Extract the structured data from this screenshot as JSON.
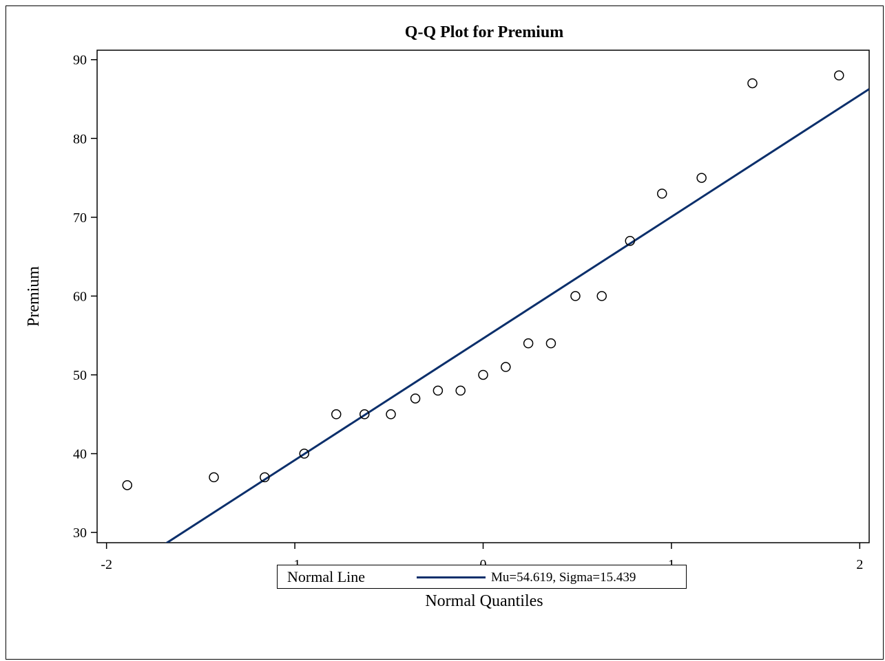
{
  "chart_data": {
    "type": "scatter",
    "title": "Q-Q Plot for Premium",
    "xlabel": "Normal Quantiles",
    "ylabel": "Premium",
    "xlim": [
      -2.05,
      2.05
    ],
    "ylim": [
      28.7,
      91.2
    ],
    "x_ticks": [
      -2,
      -1,
      0,
      1,
      2
    ],
    "y_ticks": [
      30,
      40,
      50,
      60,
      70,
      80,
      90
    ],
    "grid": false,
    "series": [
      {
        "marker": "open-circle",
        "x": [
          -1.89,
          -1.43,
          -1.16,
          -0.95,
          -0.78,
          -0.63,
          -0.49,
          -0.36,
          -0.24,
          -0.12,
          0.0,
          0.12,
          0.24,
          0.36,
          0.49,
          0.63,
          0.78,
          0.95,
          1.16,
          1.43,
          1.89
        ],
        "y": [
          36,
          37,
          37,
          40,
          45,
          45,
          45,
          47,
          48,
          48,
          50,
          51,
          54,
          54,
          60,
          60,
          67,
          73,
          75,
          87,
          88
        ]
      }
    ],
    "reference_line": {
      "mu": 54.619,
      "sigma": 15.439
    },
    "legend": {
      "title": "Normal Line",
      "label": "Mu=54.619, Sigma=15.439",
      "placement": "bottom-center"
    },
    "colors": {
      "line": "#0b2f6b",
      "marker": "#000000",
      "axis": "#000000"
    }
  }
}
